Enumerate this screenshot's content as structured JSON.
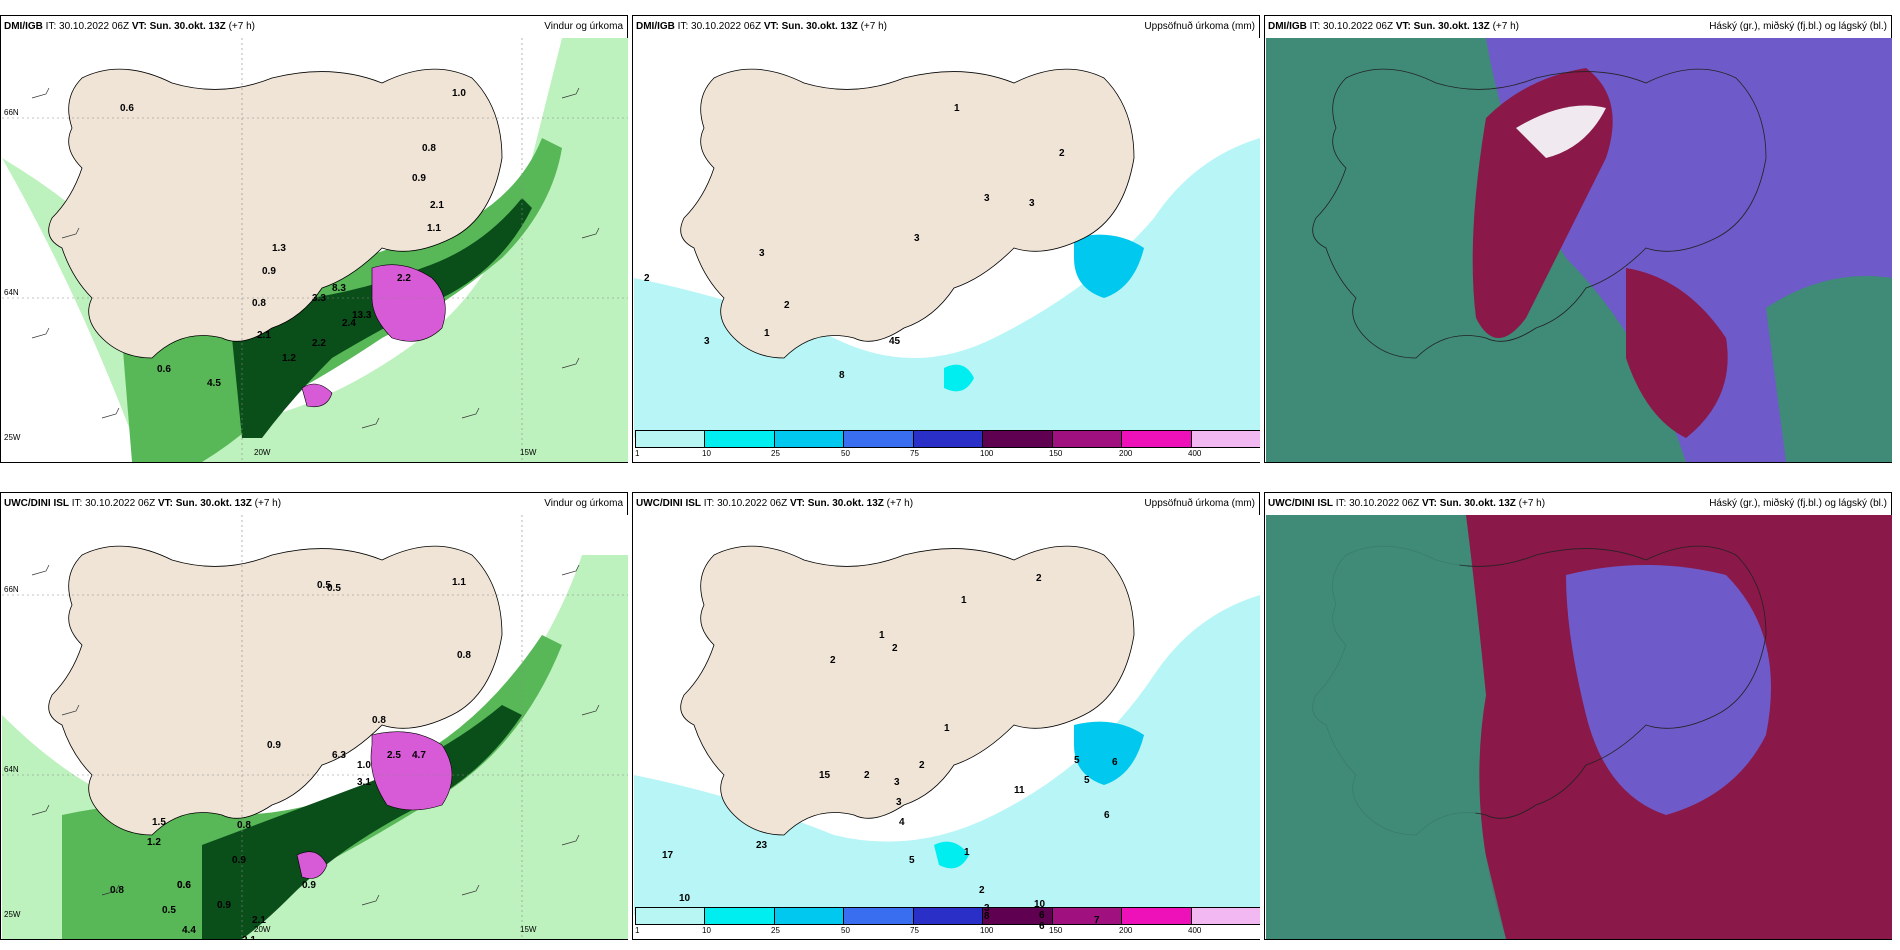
{
  "panels": [
    {
      "model": "DMI/IGB",
      "it": "IT: 30.10.2022 06Z",
      "vt_label": "VT: Sun. 30.okt. 13Z",
      "lead": "(+7 h)",
      "field": "Vindur og úrkoma",
      "lat_labels": [
        "66N",
        "64N"
      ],
      "lon_labels": [
        "25W",
        "20W",
        "15W"
      ],
      "values": [
        "0.6",
        "1.0",
        "0.8",
        "0.9",
        "2.1",
        "1.1",
        "1.3",
        "0.9",
        "0.8",
        "3.3",
        "2.4",
        "2.2",
        "1.2",
        "0.6",
        "4.5",
        "2.1",
        "8.3",
        "13.3",
        "2.2"
      ]
    },
    {
      "model": "DMI/IGB",
      "it": "IT: 30.10.2022 06Z",
      "vt_label": "VT: Sun. 30.okt. 13Z",
      "lead": "(+7 h)",
      "field": "Uppsöfnuð úrkoma (mm)",
      "lat_labels": [
        "66N",
        "64N"
      ],
      "values": [
        "1",
        "2",
        "3",
        "3",
        "3",
        "2",
        "1",
        "3",
        "8",
        "45",
        "2",
        "3"
      ]
    },
    {
      "model": "DMI/IGB",
      "it": "IT: 30.10.2022 06Z",
      "vt_label": "VT: Sun. 30.okt. 13Z",
      "lead": "(+7 h)",
      "field": "Háský (gr.), miðský (fj.bl.) og lágský (bl.)"
    },
    {
      "model": "UWC/DINI ISL",
      "it": "IT: 30.10.2022 06Z",
      "vt_label": "VT: Sun. 30.okt. 13Z",
      "lead": "(+7 h)",
      "field": "Vindur og úrkoma",
      "lat_labels": [
        "66N",
        "64N"
      ],
      "lon_labels": [
        "25W",
        "20W",
        "15W"
      ],
      "values": [
        "0.5",
        "0.5",
        "1.1",
        "0.8",
        "0.8",
        "0.9",
        "0.8",
        "1.5",
        "1.2",
        "0.9",
        "0.6",
        "0.6",
        "0.8",
        "0.5",
        "0.9",
        "0.9",
        "2.1",
        "4.4",
        "2.1",
        "6.3",
        "1.0",
        "2.5",
        "4.7",
        "3.1"
      ]
    },
    {
      "model": "UWC/DINI ISL",
      "it": "IT: 30.10.2022 06Z",
      "vt_label": "VT: Sun. 30.okt. 13Z",
      "lead": "(+7 h)",
      "field": "Uppsöfnuð úrkoma (mm)",
      "lat_labels": [
        "66N",
        "64N"
      ],
      "values": [
        "2",
        "1",
        "1",
        "2",
        "2",
        "1",
        "2",
        "2",
        "3",
        "3",
        "4",
        "5",
        "1",
        "2",
        "3",
        "8",
        "10",
        "6",
        "6",
        "7",
        "6",
        "6",
        "5",
        "5",
        "11",
        "17",
        "15",
        "23",
        "10",
        "1",
        "1",
        "2",
        "1"
      ]
    },
    {
      "model": "UWC/DINI ISL",
      "it": "IT: 30.10.2022 06Z",
      "vt_label": "VT: Sun. 30.okt. 13Z",
      "lead": "(+7 h)",
      "field": "Háský (gr.), miðský (fj.bl.) og lágský (bl.)"
    }
  ],
  "precip_scale": {
    "ticks": [
      "1",
      "10",
      "25",
      "50",
      "75",
      "100",
      "150",
      "200",
      "400"
    ],
    "colors": [
      "#b8f6f4",
      "#00eef0",
      "#00c8ee",
      "#3a6ef0",
      "#2a2fc8",
      "#600050",
      "#a0107e",
      "#ee10b8",
      "#f2b8f2"
    ]
  },
  "colors": {
    "land": "#efe4d6",
    "sea_precip": "#b7f5f6",
    "green_light": "#bdf1bd",
    "green_mid": "#58b858",
    "green_dark": "#0a4e1a",
    "magenta": "#d75ad7",
    "cloud_high": "#3f8b78",
    "cloud_mid": "#6e5ac8",
    "cloud_low": "#8a1848"
  }
}
